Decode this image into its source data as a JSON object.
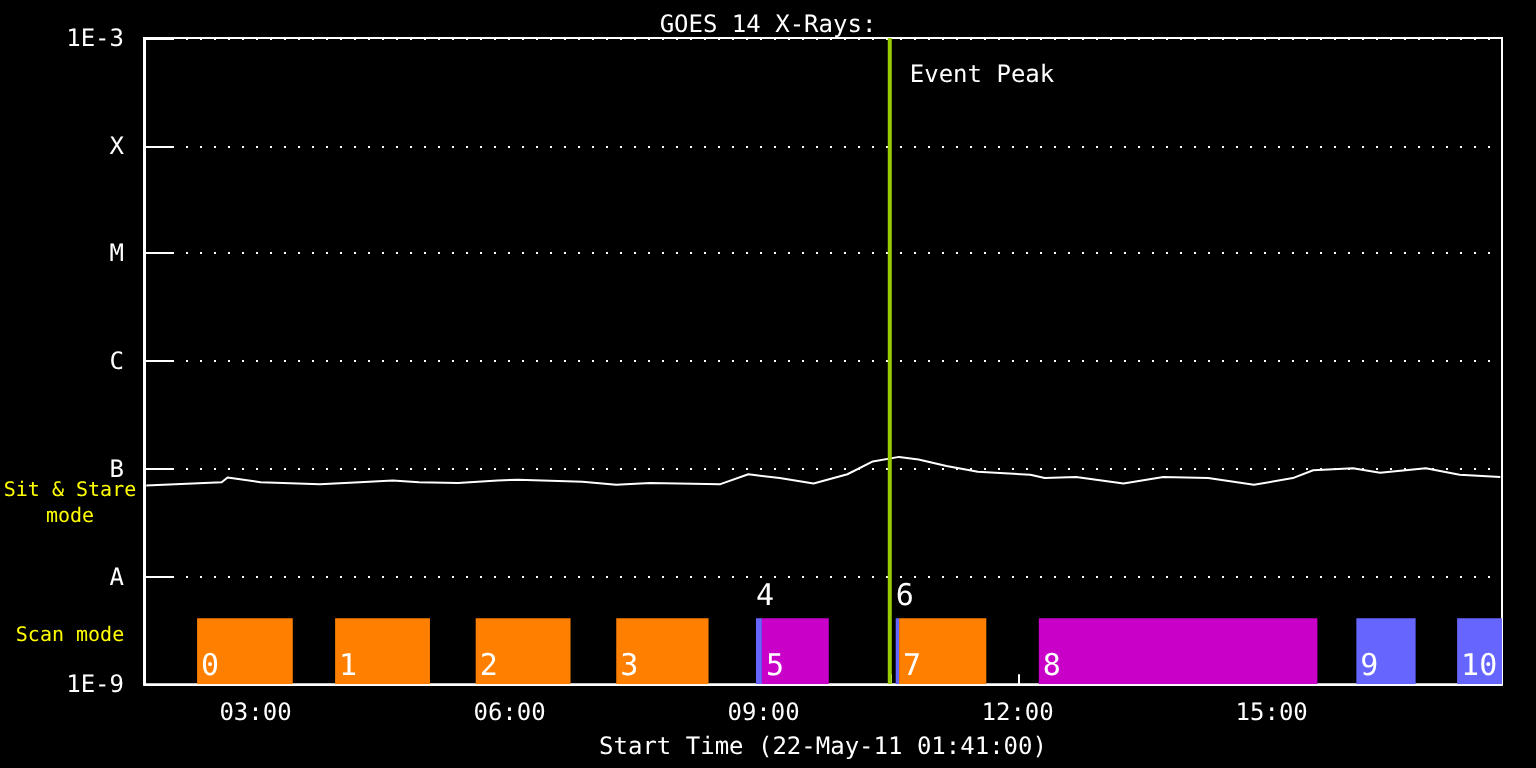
{
  "chart_data": {
    "type": "line",
    "title": "GOES 14 X-Rays:",
    "xlabel": "Start Time (22-May-11 01:41:00)",
    "annotations": [
      "Sit & Stare\nmode",
      "Scan mode"
    ],
    "x": [
      1.71,
      2.6,
      2.67,
      3.06,
      3.76,
      4.23,
      4.62,
      4.93,
      5.39,
      5.86,
      6.1,
      6.86,
      7.26,
      7.66,
      8.49,
      8.82,
      9.19,
      9.59,
      9.99,
      10.29,
      10.6,
      10.83,
      11.16,
      11.53,
      12.15,
      12.32,
      12.69,
      13.25,
      13.72,
      14.25,
      14.79,
      15.25,
      15.49,
      15.96,
      16.28,
      16.82,
      17.22,
      17.7
    ],
    "series": [
      {
        "color": "#ffffff",
        "values": [
          7e-08,
          7.5e-08,
          8.3e-08,
          7.5e-08,
          7.2e-08,
          7.5e-08,
          7.8e-08,
          7.5e-08,
          7.4e-08,
          7.8e-08,
          7.9e-08,
          7.6e-08,
          7.1e-08,
          7.4e-08,
          7.2e-08,
          8.9e-08,
          8.2e-08,
          7.3e-08,
          8.9e-08,
          1.17e-07,
          1.29e-07,
          1.22e-07,
          1.06e-07,
          9.4e-08,
          8.8e-08,
          8.2e-08,
          8.4e-08,
          7.3e-08,
          8.4e-08,
          8.2e-08,
          7.1e-08,
          8.2e-08,
          9.7e-08,
          1.01e-07,
          9.2e-08,
          1.01e-07,
          8.8e-08,
          8.4e-08
        ]
      }
    ],
    "marker": "none",
    "log": "y",
    "grid": "y",
    "xlim": [
      1.683,
      17.72
    ],
    "xticks": [
      {
        "value": 3,
        "label": "03:00"
      },
      {
        "value": 4.5,
        "label": null
      },
      {
        "value": 6,
        "label": "06:00"
      },
      {
        "value": 7.5,
        "label": null
      },
      {
        "value": 9,
        "label": "09:00"
      },
      {
        "value": 10.5,
        "label": null
      },
      {
        "value": 12,
        "label": "12:00"
      },
      {
        "value": 13.5,
        "label": null
      },
      {
        "value": 15,
        "label": "15:00"
      },
      {
        "value": 16.5,
        "label": null
      }
    ],
    "ylim": [
      1e-09,
      0.001
    ],
    "yticks": [
      {
        "value": 1e-09,
        "label": "1E-9"
      },
      {
        "value": 1e-08,
        "label": "A"
      },
      {
        "value": 1e-07,
        "label": "B"
      },
      {
        "value": 1e-06,
        "label": "C"
      },
      {
        "value": 1e-05,
        "label": "M"
      },
      {
        "value": 0.0001,
        "label": "X"
      },
      {
        "value": 0.001,
        "label": "1E-3"
      }
    ],
    "ref_lines": [
      {
        "axis": "x",
        "value": 10.49,
        "label": "Event Peak",
        "color": "#99cc00"
      }
    ],
    "bands": [
      {
        "axis": "x",
        "from": 2.31,
        "to": 3.44,
        "label": "0",
        "color": "#ff8000"
      },
      {
        "axis": "x",
        "from": 3.94,
        "to": 5.06,
        "label": "1",
        "color": "#ff8000"
      },
      {
        "axis": "x",
        "from": 5.6,
        "to": 6.72,
        "label": "2",
        "color": "#ff8000"
      },
      {
        "axis": "x",
        "from": 7.26,
        "to": 8.35,
        "label": "3",
        "color": "#ff8000"
      },
      {
        "axis": "x",
        "from": 8.91,
        "to": 8.98,
        "label": "4",
        "color": "#6666ff"
      },
      {
        "axis": "x",
        "from": 8.98,
        "to": 9.77,
        "label": "5",
        "color": "#c800c8"
      },
      {
        "axis": "x",
        "from": 10.56,
        "to": 10.6,
        "label": "6",
        "color": "#6666ff"
      },
      {
        "axis": "x",
        "from": 10.6,
        "to": 11.63,
        "label": "7",
        "color": "#ff8000"
      },
      {
        "axis": "x",
        "from": 12.25,
        "to": 15.54,
        "label": "8",
        "color": "#c800c8"
      },
      {
        "axis": "x",
        "from": 16.0,
        "to": 16.7,
        "label": "9",
        "color": "#6666ff"
      },
      {
        "axis": "x",
        "from": 17.19,
        "to": 17.72,
        "label": "10",
        "color": "#6666ff"
      }
    ]
  }
}
